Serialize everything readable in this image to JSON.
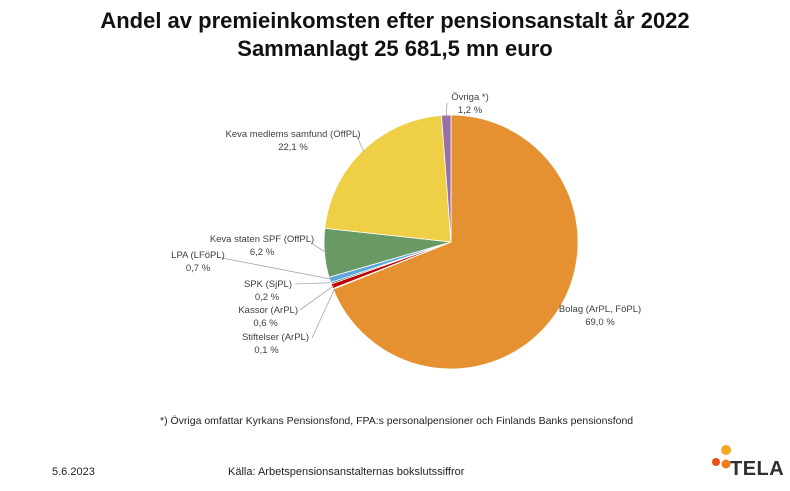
{
  "header": {
    "title_line1": "Andel av premieinkomsten efter pensionsanstalt år 2022",
    "title_line2": "Sammanlagt 25 681,5 mn euro"
  },
  "chart_data": {
    "type": "pie",
    "title": "Andel av premieinkomsten efter pensionsanstalt år 2022",
    "subtitle": "Sammanlagt 25 681,5 mn euro",
    "unit": "%",
    "slices": [
      {
        "label": "Bolag (ArPL, FöPL)",
        "value": 69.0,
        "value_text": "69,0 %",
        "color": "#E59131"
      },
      {
        "label": "Stiftelser (ArPL)",
        "value": 0.1,
        "value_text": "0,1 %",
        "color": "#B8860B"
      },
      {
        "label": "Kassor (ArPL)",
        "value": 0.6,
        "value_text": "0,6 %",
        "color": "#C00000"
      },
      {
        "label": "SPK (SjPL)",
        "value": 0.2,
        "value_text": "0,2 %",
        "color": "#1F4E79"
      },
      {
        "label": "LPA (LFöPL)",
        "value": 0.7,
        "value_text": "0,7 %",
        "color": "#5BA7DC"
      },
      {
        "label": "Keva staten SPF (OffPL)",
        "value": 6.2,
        "value_text": "6,2 %",
        "color": "#6A9A63"
      },
      {
        "label": "Keva medlems samfund (OffPL)",
        "value": 22.1,
        "value_text": "22,1 %",
        "color": "#EFCF45"
      },
      {
        "label": "Övriga *)",
        "value": 1.2,
        "value_text": "1,2 %",
        "color": "#9B6FA5"
      }
    ]
  },
  "footer": {
    "footnote": "*) Övriga omfattar Kyrkans Pensionsfond, FPA:s personalpensioner och Finlands Banks pensionsfond",
    "date": "5.6.2023",
    "source": "Källa: Arbetspensionsanstalternas bokslutssiffror",
    "logo_text": "TELA"
  },
  "logo_colors": {
    "top": "#F5A623",
    "left": "#E94E1B",
    "mid": "#F07D1A"
  }
}
